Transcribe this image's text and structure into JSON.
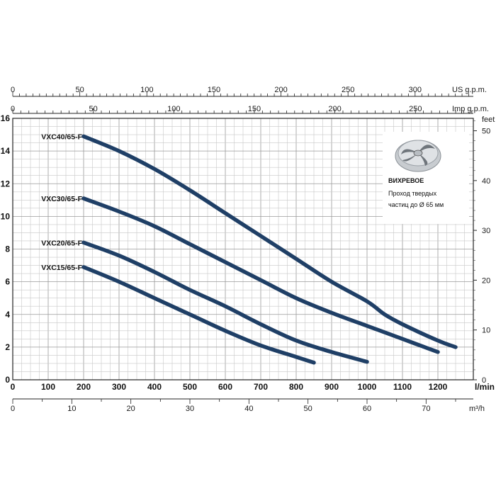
{
  "chart_data": {
    "type": "line",
    "x_main": {
      "unit": "l/min",
      "range": [
        0,
        1300
      ],
      "ticks": [
        0,
        100,
        200,
        300,
        400,
        500,
        600,
        700,
        800,
        900,
        1000,
        1100,
        1200
      ]
    },
    "y_left": {
      "range": [
        0,
        16
      ],
      "ticks": [
        0,
        2,
        4,
        6,
        8,
        10,
        12,
        14,
        16
      ]
    },
    "y_right": {
      "unit": "feet",
      "ticks": [
        0,
        10,
        20,
        30,
        40,
        50
      ]
    },
    "x_top_us": {
      "unit": "US g.p.m.",
      "ticks": [
        0,
        50,
        100,
        150,
        200,
        250,
        300
      ]
    },
    "x_top_imp": {
      "unit": "Imp g.p.m.",
      "ticks": [
        0,
        50,
        100,
        150,
        200,
        250
      ]
    },
    "x_bottom_m3h": {
      "unit": "m³/h",
      "ticks": [
        0,
        10,
        20,
        30,
        40,
        50,
        60,
        70
      ]
    },
    "grid": true,
    "series": [
      {
        "name": "VXC40/65-F",
        "points": [
          [
            200,
            14.9
          ],
          [
            300,
            14.0
          ],
          [
            400,
            12.9
          ],
          [
            500,
            11.6
          ],
          [
            600,
            10.2
          ],
          [
            700,
            8.8
          ],
          [
            800,
            7.4
          ],
          [
            900,
            6.0
          ],
          [
            1000,
            4.8
          ],
          [
            1050,
            4.0
          ],
          [
            1100,
            3.4
          ],
          [
            1200,
            2.4
          ],
          [
            1250,
            2.0
          ]
        ]
      },
      {
        "name": "VXC30/65-F",
        "points": [
          [
            200,
            11.1
          ],
          [
            300,
            10.3
          ],
          [
            400,
            9.4
          ],
          [
            500,
            8.3
          ],
          [
            600,
            7.2
          ],
          [
            700,
            6.1
          ],
          [
            800,
            5.0
          ],
          [
            900,
            4.1
          ],
          [
            1000,
            3.3
          ],
          [
            1100,
            2.5
          ],
          [
            1150,
            2.1
          ],
          [
            1200,
            1.7
          ],
          [
            1200,
            1.5
          ]
        ]
      },
      {
        "name": "VXC20/65-F",
        "points": [
          [
            200,
            8.4
          ],
          [
            300,
            7.6
          ],
          [
            400,
            6.6
          ],
          [
            500,
            5.5
          ],
          [
            600,
            4.5
          ],
          [
            700,
            3.4
          ],
          [
            800,
            2.4
          ],
          [
            900,
            1.7
          ],
          [
            1000,
            1.1
          ]
        ]
      },
      {
        "name": "VXC15/65-F",
        "points": [
          [
            200,
            6.9
          ],
          [
            300,
            6.0
          ],
          [
            400,
            5.0
          ],
          [
            500,
            4.0
          ],
          [
            600,
            3.0
          ],
          [
            700,
            2.1
          ],
          [
            800,
            1.4
          ],
          [
            850,
            1.05
          ]
        ]
      }
    ]
  },
  "info": {
    "title": "ВИХРЕВОЕ",
    "line1": "Проход твердых",
    "line2": "частиц до Ø 65 мм"
  }
}
